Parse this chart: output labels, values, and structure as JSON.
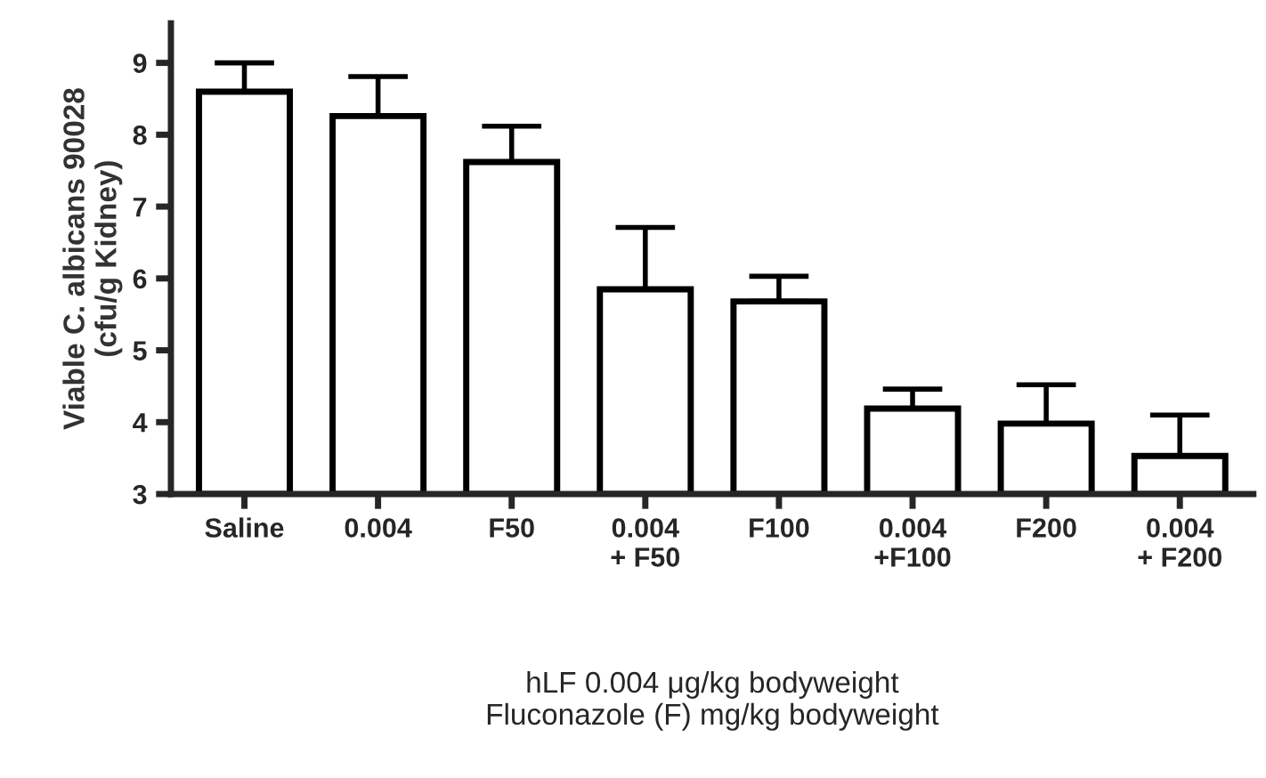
{
  "chart_data": {
    "type": "bar",
    "categories": [
      "Saline",
      "0.004",
      "F50",
      "0.004\n+ F50",
      "F100",
      "0.004\n+F100",
      "F200",
      "0.004\n+ F200"
    ],
    "values": [
      8.6,
      8.26,
      7.62,
      5.85,
      5.68,
      4.19,
      3.98,
      3.53
    ],
    "errors": [
      [
        8.6,
        9.0
      ],
      [
        8.26,
        8.81
      ],
      [
        7.62,
        8.12
      ],
      [
        5.85,
        6.71
      ],
      [
        5.68,
        6.03
      ],
      [
        4.19,
        4.46
      ],
      [
        3.98,
        4.52
      ],
      [
        3.53,
        4.1
      ]
    ],
    "color": "#ffffff",
    "ylabel": "Viable C. albicans 90028\n(cfu/g Kidney)",
    "xlabel": "hLF 0.004 μg/kg bodyweight\nFluconazole (F) mg/kg bodyweight",
    "ylim": [
      3,
      9.55
    ],
    "yticks": [
      3,
      4,
      5,
      6,
      7,
      8,
      9
    ],
    "grid": false,
    "legend": false
  }
}
